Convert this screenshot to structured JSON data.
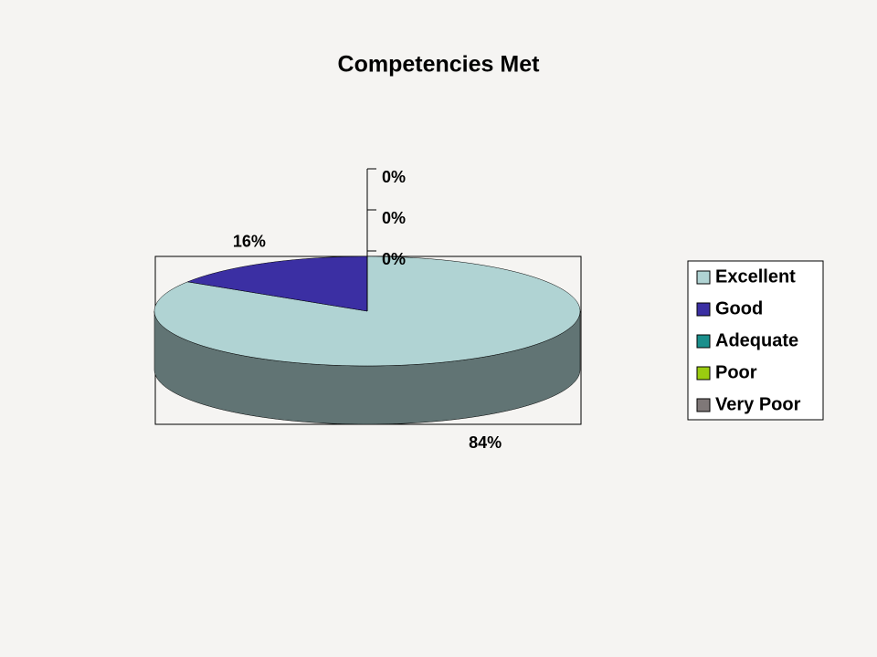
{
  "chart_data": {
    "type": "pie3d",
    "title": "Competencies Met",
    "categories": [
      "Excellent",
      "Good",
      "Adequate",
      "Poor",
      "Very Poor"
    ],
    "values": [
      84,
      16,
      0,
      0,
      0
    ],
    "value_labels": [
      "84%",
      "16%",
      "0%",
      "0%",
      "0%"
    ],
    "colors": [
      "#b0d3d3",
      "#3b2fa3",
      "#1a8f8c",
      "#9bcc10",
      "#7f7878"
    ],
    "legend": "right"
  }
}
